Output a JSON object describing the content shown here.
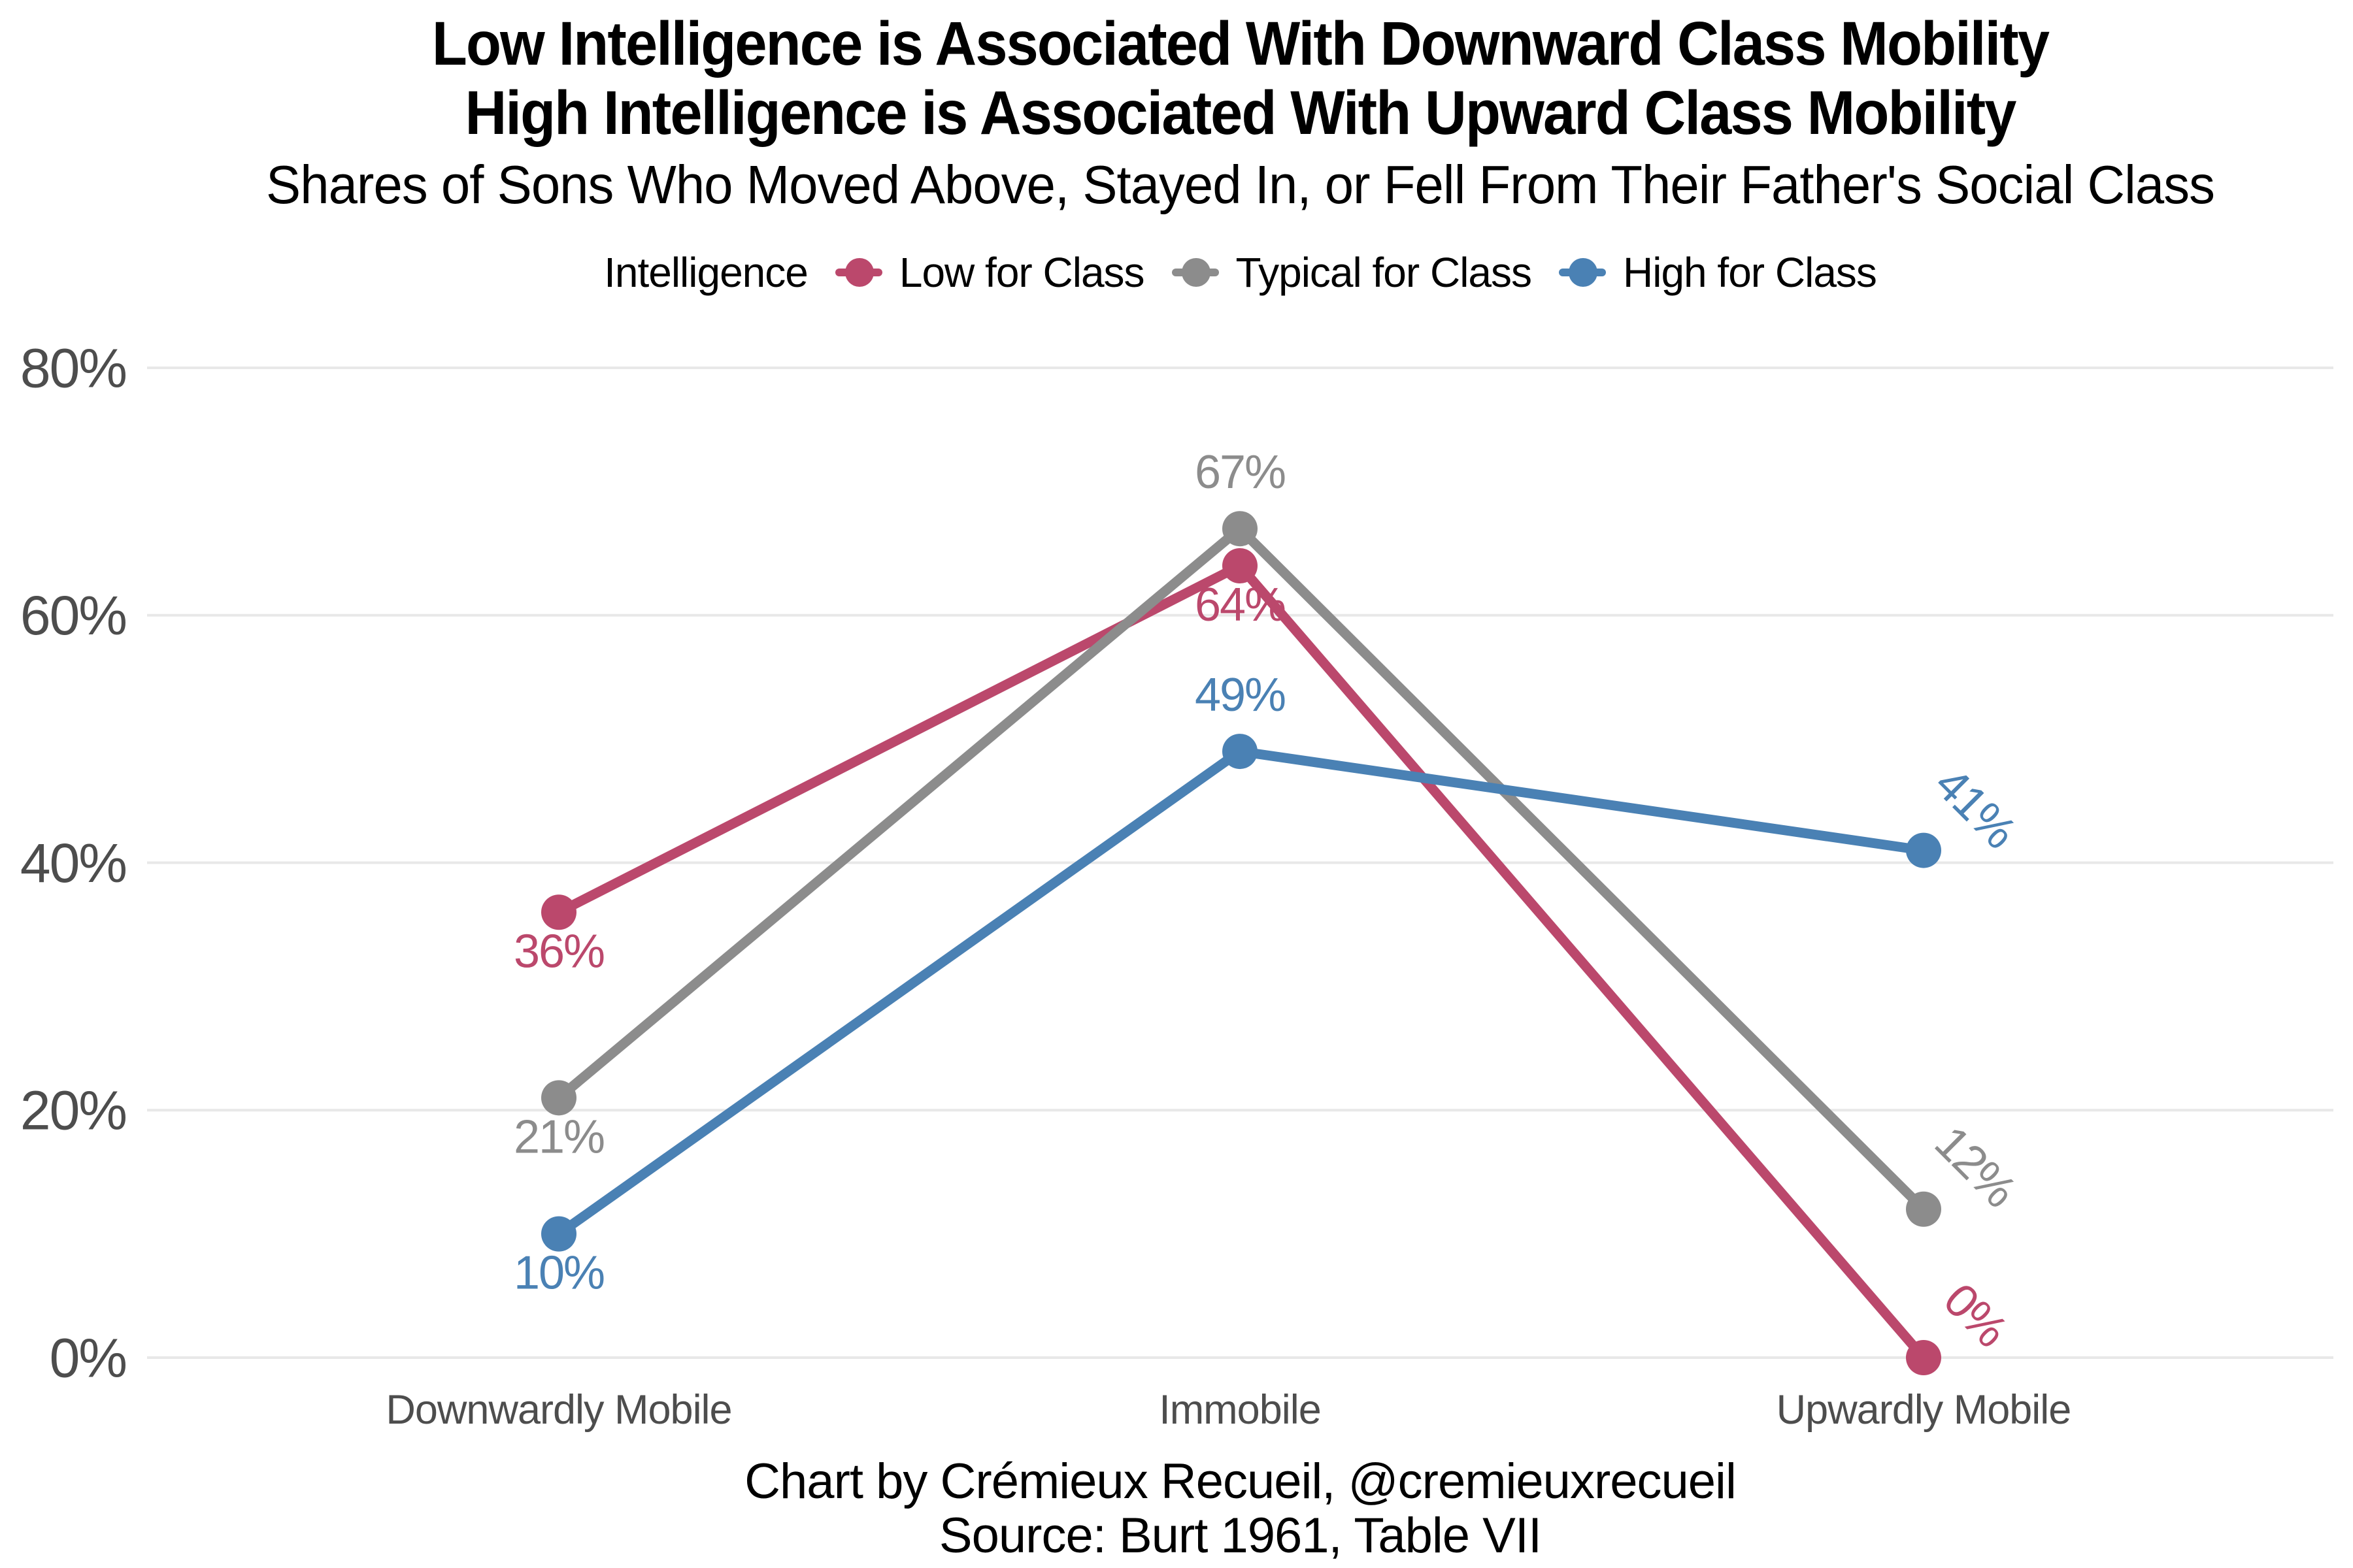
{
  "title": {
    "line1": "Low Intelligence is Associated With Downward Class Mobility",
    "line2": "High Intelligence is Associated With Upward Class Mobility"
  },
  "subtitle": "Shares of Sons Who Moved Above, Stayed In, or Fell From Their Father's Social Class",
  "legend": {
    "title": "Intelligence",
    "items": [
      {
        "label": "Low for Class",
        "color": "#BB486C"
      },
      {
        "label": "Typical for Class",
        "color": "#8C8C8C"
      },
      {
        "label": "High for Class",
        "color": "#4A81B4"
      }
    ]
  },
  "caption": {
    "line1": "Chart by Crémieux Recueil, @cremieuxrecueil",
    "line2": "Source: Burt 1961, Table VII"
  },
  "colors": {
    "grid": "#E8E8E8",
    "axis_text": "#4D4D4D",
    "background": "#FFFFFF"
  },
  "chart_data": {
    "type": "line",
    "title": "Low Intelligence is Associated With Downward Class Mobility / High Intelligence is Associated With Upward Class Mobility",
    "categories": [
      "Downwardly Mobile",
      "Immobile",
      "Upwardly Mobile"
    ],
    "series": [
      {
        "name": "Low for Class",
        "color": "#BB486C",
        "values": [
          36,
          64,
          0
        ],
        "point_labels": [
          "36%",
          "64%",
          "0%"
        ]
      },
      {
        "name": "Typical for Class",
        "color": "#8C8C8C",
        "values": [
          21,
          67,
          12
        ],
        "point_labels": [
          "21%",
          "67%",
          "12%"
        ]
      },
      {
        "name": "High for Class",
        "color": "#4A81B4",
        "values": [
          10,
          49,
          41
        ],
        "point_labels": [
          "10%",
          "49%",
          "41%"
        ]
      }
    ],
    "xlabel": "",
    "ylabel": "",
    "ylim": [
      0,
      80
    ],
    "yticks": [
      {
        "value": 0,
        "label": "0%"
      },
      {
        "value": 20,
        "label": "20%"
      },
      {
        "value": 40,
        "label": "40%"
      },
      {
        "value": 60,
        "label": "60%"
      },
      {
        "value": 80,
        "label": "80%"
      }
    ],
    "grid": "horizontal-major-only",
    "legend_position": "top"
  }
}
